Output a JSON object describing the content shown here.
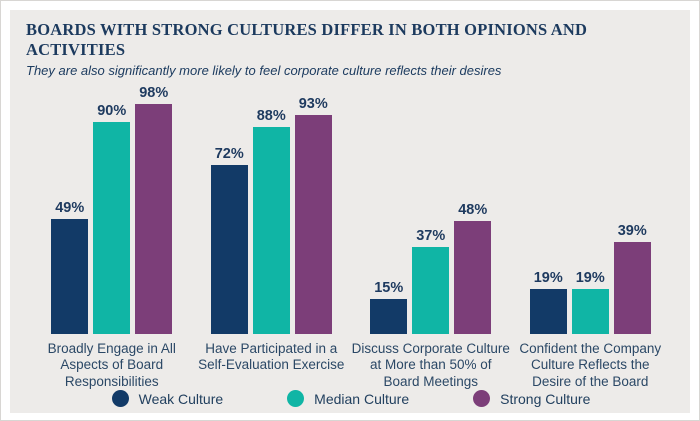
{
  "title": "BOARDS WITH STRONG CULTURES DIFFER IN BOTH OPINIONS AND ACTIVITIES",
  "subtitle": "They are also significantly more likely to feel corporate culture reflects their desires",
  "colors": {
    "weak": "#123A67",
    "median": "#10B5A5",
    "strong": "#7C3E79",
    "heading_text": "#1C3A5E",
    "label_text": "#2B4866",
    "panel_background": "#EDEBE9"
  },
  "chart_data": {
    "type": "bar",
    "title": "BOARDS WITH STRONG CULTURES DIFFER IN BOTH OPINIONS AND ACTIVITIES",
    "subtitle": "They are also significantly more likely to feel corporate culture reflects their desires",
    "categories": [
      "Broadly Engage in All Aspects of Board Responsibilities",
      "Have Participated in a Self-Evaluation Exercise",
      "Discuss Corporate Culture at More than 50% of Board Meetings",
      "Confident the Company Culture Reflects the Desire of the Board"
    ],
    "category_lines": [
      [
        "Broadly Engage in All",
        "Aspects of Board",
        "Responsibilities"
      ],
      [
        "Have Participated in a",
        "Self-Evaluation Exercise"
      ],
      [
        "Discuss Corporate Culture",
        "at More than 50% of",
        "Board Meetings"
      ],
      [
        "Confident the Company",
        "Culture Reflects the",
        "Desire of the Board"
      ]
    ],
    "series": [
      {
        "name": "Weak Culture",
        "color": "#123A67",
        "values": [
          49,
          72,
          15,
          19
        ]
      },
      {
        "name": "Median Culture",
        "color": "#10B5A5",
        "values": [
          90,
          88,
          37,
          19
        ]
      },
      {
        "name": "Strong Culture",
        "color": "#7C3E79",
        "values": [
          98,
          93,
          48,
          39
        ]
      }
    ],
    "value_suffix": "%",
    "value_labels": true,
    "ylim": [
      0,
      100
    ],
    "grid": false,
    "legend_position": "bottom"
  }
}
